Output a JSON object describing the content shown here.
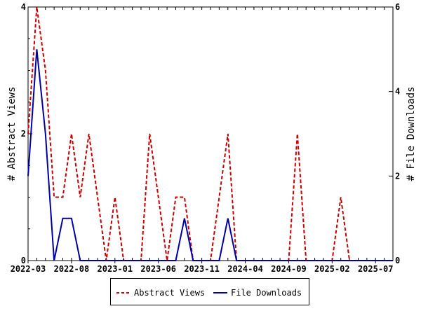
{
  "chart_data": {
    "type": "line",
    "title": "",
    "xlabel": "",
    "ylabel_left": "# Abstract Views",
    "ylabel_right": "# File Downloads",
    "ylim_left": [
      0,
      4
    ],
    "ylim_right": [
      0,
      6
    ],
    "yticks_left": [
      "0",
      "2",
      "4"
    ],
    "yticks_right": [
      "0",
      "2",
      "4",
      "6"
    ],
    "x_start": "2022-03",
    "x_months": 43,
    "xtick_labels": [
      "2022-03",
      "2022-08",
      "2023-01",
      "2023-06",
      "2023-11",
      "2024-04",
      "2024-09",
      "2025-02",
      "2025-07"
    ],
    "grid": false,
    "legend_position": "bottom",
    "series": [
      {
        "name": "Abstract Views",
        "axis": "left",
        "color": "#cc0000",
        "style": "dashed",
        "values": [
          2,
          4,
          3,
          1,
          1,
          2,
          1,
          2,
          1,
          0,
          1,
          0,
          0,
          0,
          2,
          1,
          0,
          1,
          1,
          0,
          0,
          0,
          1,
          2,
          0,
          0,
          0,
          0,
          0,
          0,
          0,
          2,
          0,
          0,
          0,
          0,
          1,
          0,
          0,
          0,
          0,
          0,
          0
        ]
      },
      {
        "name": "File Downloads",
        "axis": "right",
        "color": "#0000aa",
        "style": "solid",
        "values": [
          2,
          5,
          3,
          0,
          1,
          1,
          0,
          0,
          0,
          0,
          0,
          0,
          0,
          0,
          0,
          0,
          0,
          0,
          1,
          0,
          0,
          0,
          0,
          1,
          0,
          0,
          0,
          0,
          0,
          0,
          0,
          0,
          0,
          0,
          0,
          0,
          0,
          0,
          0,
          0,
          0,
          0,
          0
        ]
      }
    ]
  }
}
